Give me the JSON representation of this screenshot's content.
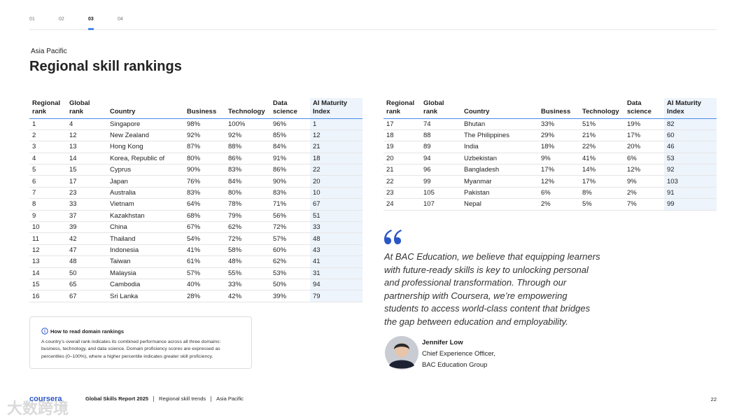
{
  "nav": {
    "tabs": [
      "01",
      "02",
      "03",
      "04"
    ],
    "active": 2
  },
  "header": {
    "region": "Asia Pacific",
    "title": "Regional skill rankings"
  },
  "table": {
    "columns": [
      "Regional rank",
      "Global rank",
      "Country",
      "Business",
      "Technology",
      "Data science",
      "AI Maturity Index"
    ],
    "parts": [
      {
        "rows": [
          [
            1,
            4,
            "Singapore",
            "98%",
            "100%",
            "96%",
            1
          ],
          [
            2,
            12,
            "New Zealand",
            "92%",
            "92%",
            "85%",
            12
          ],
          [
            3,
            13,
            "Hong Kong",
            "87%",
            "88%",
            "84%",
            21
          ],
          [
            4,
            14,
            "Korea, Republic of",
            "80%",
            "86%",
            "91%",
            18
          ],
          [
            5,
            15,
            "Cyprus",
            "90%",
            "83%",
            "86%",
            22
          ],
          [
            6,
            17,
            "Japan",
            "76%",
            "84%",
            "90%",
            20
          ],
          [
            7,
            23,
            "Australia",
            "83%",
            "80%",
            "83%",
            10
          ],
          [
            8,
            33,
            "Vietnam",
            "64%",
            "78%",
            "71%",
            67
          ],
          [
            9,
            37,
            "Kazakhstan",
            "68%",
            "79%",
            "56%",
            51
          ],
          [
            10,
            39,
            "China",
            "67%",
            "62%",
            "72%",
            33
          ],
          [
            11,
            42,
            "Thailand",
            "54%",
            "72%",
            "57%",
            48
          ],
          [
            12,
            47,
            "Indonesia",
            "41%",
            "58%",
            "60%",
            43
          ],
          [
            13,
            48,
            "Taiwan",
            "61%",
            "48%",
            "62%",
            41
          ],
          [
            14,
            50,
            "Malaysia",
            "57%",
            "55%",
            "53%",
            31
          ],
          [
            15,
            65,
            "Cambodia",
            "40%",
            "33%",
            "50%",
            94
          ],
          [
            16,
            67,
            "Sri Lanka",
            "28%",
            "42%",
            "39%",
            79
          ]
        ]
      },
      {
        "rows": [
          [
            17,
            74,
            "Bhutan",
            "33%",
            "51%",
            "19%",
            82
          ],
          [
            18,
            88,
            "The Philippines",
            "29%",
            "21%",
            "17%",
            60
          ],
          [
            19,
            89,
            "India",
            "18%",
            "22%",
            "20%",
            46
          ],
          [
            20,
            94,
            "Uzbekistan",
            "9%",
            "41%",
            "6%",
            53
          ],
          [
            21,
            96,
            "Bangladesh",
            "17%",
            "14%",
            "12%",
            92
          ],
          [
            22,
            99,
            "Myanmar",
            "12%",
            "17%",
            "9%",
            103
          ],
          [
            23,
            105,
            "Pakistan",
            "6%",
            "8%",
            "2%",
            91
          ],
          [
            24,
            107,
            "Nepal",
            "2%",
            "5%",
            "7%",
            99
          ]
        ]
      }
    ]
  },
  "info": {
    "title": "How to read domain rankings",
    "text": "A country’s overall rank indicates its combined performance across all three domains: business, technology, and data science. Domain proficiency scores are expressed as percentiles (0–100%), where a higher percentile indicates greater skill proficiency."
  },
  "quote": {
    "text": "At BAC Education, we believe that equipping learners with future-ready skills is key to unlocking personal and professional transformation. Through our partnership with Coursera, we’re empowering students to access world-class content that bridges the gap between education and employability.",
    "name": "Jennifer Low",
    "role": "Chief Experience Officer,",
    "org": "BAC Education Group"
  },
  "footer": {
    "logo": "coursera",
    "items": [
      "Global Skills Report 2025",
      "Regional skill trends",
      "Asia Pacific"
    ],
    "page": "22",
    "watermark": "大数跨境"
  }
}
